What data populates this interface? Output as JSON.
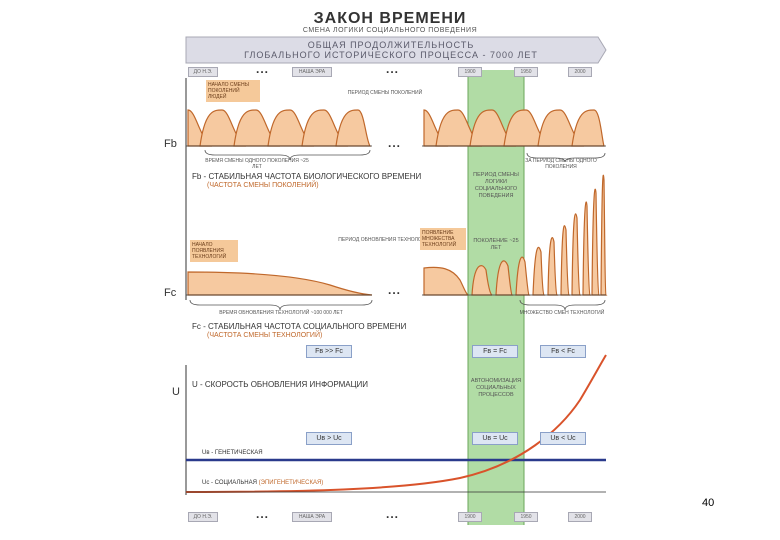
{
  "header": {
    "title": "ЗАКОН ВРЕМЕНИ",
    "subtitle": "СМЕНА ЛОГИКИ СОЦИАЛЬНОГО ПОВЕДЕНИЯ"
  },
  "banner": {
    "line1": "ОБЩАЯ ПРОДОЛЖИТЕЛЬНОСТЬ",
    "line2": "ГЛОБАЛЬНОГО ИСТОРИЧЕСКОГО ПРОЦЕССА - 7000 ЛЕТ"
  },
  "timeline_top": {
    "start": "ДО Н.Э.",
    "era": "НАША ЭРА",
    "t1900": "1900",
    "t1950": "1950",
    "t2000": "2000"
  },
  "timeline_bottom": {
    "start": "ДО Н.Э.",
    "era": "НАША ЭРА",
    "t1900": "1900",
    "t1950": "1950",
    "t2000": "2000"
  },
  "ellipsis": "...",
  "notes": {
    "gen_start": "НАЧАЛО СМЕНЫ ПОКОЛЕНИЙ ЛЮДЕЙ",
    "gen_period": "ПЕРИОД СМЕНЫ ПОКОЛЕНИЙ",
    "gen_time": "ВРЕМЯ СМЕНЫ ОДНОГО ПОКОЛЕНИЯ ~25 ЛЕТ",
    "tech_start": "НАЧАЛО ПОЯВЛЕНИЯ ТЕХНОЛОГИЙ",
    "tech_period": "ПЕРИОД ОБНОВЛЕНИЯ ТЕХНОЛОГИЙ",
    "tech_many": "ПОЯВЛЕНИЕ МНОЖЕСТВА ТЕХНОЛОГИЙ",
    "tech_time": "ВРЕМЯ ОБНОВЛЕНИЯ ТЕХНОЛОГИЙ ~100 000 ЛЕТ",
    "gen_many": "ЗА ПЕРИОД СМЕНЫ ОДНОГО ПОКОЛЕНИЯ",
    "gen_many_tech": "МНОЖЕСТВО СМЕН ТЕХНОЛОГИЙ",
    "green_title": "ПЕРИОД СМЕНЫ ЛОГИКИ СОЦИАЛЬНОГО ПОВЕДЕНИЯ",
    "green_sub": "ПОКОЛЕНИЕ ~25 ЛЕТ",
    "green_u": "АВТОНОМИЗАЦИЯ СОЦИАЛЬНЫХ ПРОЦЕССОВ"
  },
  "labels": {
    "fb": "Fb",
    "fc": "Fc",
    "u": "U",
    "fb_desc": "Fb - СТАБИЛЬНАЯ ЧАСТОТА БИОЛОГИЧЕСКОГО ВРЕМЕНИ",
    "fb_sub": "(ЧАСТОТА СМЕНЫ ПОКОЛЕНИЙ)",
    "fc_desc": "Fc - СТАБИЛЬНАЯ ЧАСТОТА СОЦИАЛЬНОГО ВРЕМЕНИ",
    "fc_sub": "(ЧАСТОТА СМЕНЫ ТЕХНОЛОГИЙ)",
    "u_desc": "U - СКОРОСТЬ ОБНОВЛЕНИЯ ИНФОРМАЦИИ",
    "ub_desc": "Uв - ГЕНЕТИЧЕСКАЯ",
    "uc_desc": "Uc - СОЦИАЛЬНАЯ",
    "uc_sub": "(ЭПИГЕНЕТИЧЕСКАЯ)"
  },
  "compare": {
    "f1": "Fв >> Fc",
    "f2": "Fв = Fc",
    "f3": "Fв < Fc",
    "u1": "Uв > Uc",
    "u2": "Uв = Uc",
    "u3": "Uв < Uc"
  },
  "page_number": "40",
  "colors": {
    "wave_fill": "#f6c9a0",
    "wave_stroke": "#c0682b",
    "green": "#a9d89b",
    "banner": "#dcdce6",
    "blue_line": "#2a3a8c",
    "red_curve": "#d9532b"
  }
}
